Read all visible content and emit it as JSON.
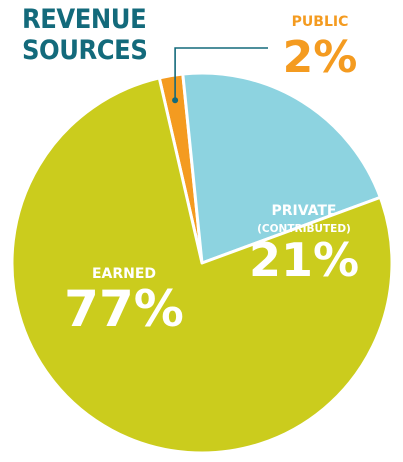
{
  "chart_data": {
    "type": "pie",
    "title": [
      "REVENUE",
      "SOURCES"
    ],
    "slices": [
      {
        "label": "PUBLIC",
        "sublabel": "",
        "value": 2,
        "value_label": "2%",
        "color": "#f49b20",
        "label_color": "#f49b20"
      },
      {
        "label": "PRIVATE",
        "sublabel": "(CONTRIBUTED)",
        "value": 21,
        "value_label": "21%",
        "color": "#8dd3e0",
        "label_color": "#ffffff"
      },
      {
        "label": "EARNED",
        "sublabel": "",
        "value": 77,
        "value_label": "77%",
        "color": "#cbcc1d",
        "label_color": "#ffffff"
      }
    ],
    "legend": "none"
  }
}
